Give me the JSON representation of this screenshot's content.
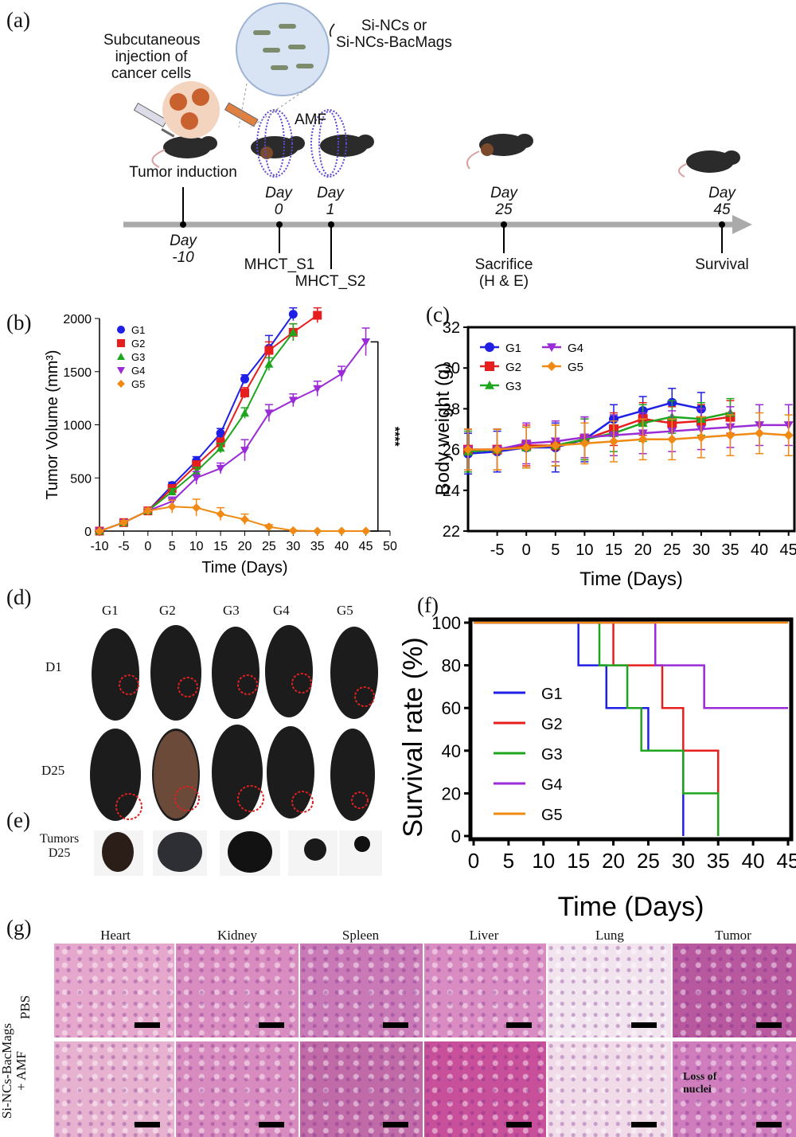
{
  "panels": {
    "a": "(a)",
    "b": "(b)",
    "c": "(c)",
    "d": "(d)",
    "e": "(e)",
    "f": "(f)",
    "g": "(g)"
  },
  "timeline": {
    "injection_label": "Subcutaneous\ninjection of\ncancer cells",
    "particles_label": "Si-NCs or\nSi-NCs-BacMags",
    "amf_label": "AMF",
    "tumor_induction": "Tumor induction",
    "events": [
      {
        "day": "Day\n-10",
        "label": ""
      },
      {
        "day": "Day\n0",
        "label": "MHCT_S1"
      },
      {
        "day": "Day\n1",
        "label": "MHCT_S2"
      },
      {
        "day": "Day\n25",
        "label": "Sacrifice\n(H & E)"
      },
      {
        "day": "Day\n45",
        "label": "Survival"
      }
    ]
  },
  "photos": {
    "groups": [
      "G1",
      "G2",
      "G3",
      "G4",
      "G5"
    ],
    "rows": [
      "D1",
      "D25"
    ],
    "tumors_label": "Tumors\nD25"
  },
  "histology": {
    "columns": [
      "Heart",
      "Kidney",
      "Spleen",
      "Liver",
      "Lung",
      "Tumor"
    ],
    "rows": [
      "PBS",
      "Si-NCs-BacMags\n+ AMF"
    ],
    "annotation": "Loss of\nnuclei",
    "stain_color": "#d77fb6"
  },
  "colors": {
    "G1": "#1f1fe6",
    "G2": "#e61e1e",
    "G3": "#1ea61e",
    "G4": "#9a2bd6",
    "G5": "#f08a14"
  },
  "chart_data": [
    {
      "id": "b",
      "type": "line",
      "title": "",
      "xlabel": "Time (Days)",
      "ylabel": "Tumor Volume (mm³)",
      "xlim": [
        -10,
        50
      ],
      "ylim": [
        0,
        2000
      ],
      "xticks": [
        -10,
        -5,
        0,
        5,
        10,
        15,
        20,
        25,
        30,
        35,
        40,
        45,
        50
      ],
      "yticks": [
        0,
        500,
        1000,
        1500,
        2000
      ],
      "legend": "top-left",
      "significance": "****",
      "series": [
        {
          "name": "G1",
          "x": [
            -10,
            -5,
            0,
            5,
            10,
            15,
            20,
            25,
            30
          ],
          "y": [
            0,
            80,
            190,
            430,
            660,
            920,
            1430,
            1720,
            2040
          ],
          "err": [
            10,
            20,
            25,
            30,
            40,
            45,
            40,
            120,
            60
          ]
        },
        {
          "name": "G2",
          "x": [
            -10,
            -5,
            0,
            5,
            10,
            15,
            20,
            25,
            30,
            35
          ],
          "y": [
            0,
            80,
            190,
            400,
            620,
            830,
            1300,
            1700,
            1870,
            2030
          ],
          "err": [
            10,
            20,
            25,
            30,
            40,
            45,
            50,
            80,
            80,
            70
          ]
        },
        {
          "name": "G3",
          "x": [
            -10,
            -5,
            0,
            5,
            10,
            15,
            20,
            25,
            30
          ],
          "y": [
            0,
            80,
            190,
            370,
            560,
            780,
            1110,
            1570,
            1870
          ],
          "err": [
            10,
            20,
            25,
            30,
            40,
            45,
            50,
            60,
            80
          ]
        },
        {
          "name": "G4",
          "x": [
            -10,
            -5,
            0,
            5,
            10,
            15,
            20,
            25,
            30,
            35,
            40,
            45
          ],
          "y": [
            0,
            80,
            190,
            280,
            500,
            590,
            760,
            1110,
            1230,
            1340,
            1480,
            1780
          ],
          "err": [
            10,
            20,
            25,
            40,
            60,
            50,
            100,
            80,
            60,
            70,
            70,
            130
          ]
        },
        {
          "name": "G5",
          "x": [
            -10,
            -5,
            0,
            5,
            10,
            15,
            20,
            25,
            30,
            35,
            40,
            45
          ],
          "y": [
            0,
            80,
            190,
            230,
            220,
            160,
            110,
            40,
            5,
            0,
            0,
            0
          ],
          "err": [
            10,
            20,
            25,
            60,
            80,
            60,
            50,
            20,
            5,
            0,
            0,
            0
          ]
        }
      ]
    },
    {
      "id": "c",
      "type": "line",
      "title": "",
      "xlabel": "Time (Days)",
      "ylabel": "Body weight (g)",
      "xlim": [
        -10,
        46
      ],
      "ylim": [
        22,
        32
      ],
      "xticks": [
        -5,
        0,
        5,
        10,
        15,
        20,
        25,
        30,
        35,
        40,
        45
      ],
      "yticks": [
        22,
        24,
        26,
        28,
        30,
        32
      ],
      "legend": "top-left",
      "series": [
        {
          "name": "G1",
          "x": [
            -10,
            -5,
            0,
            5,
            10,
            15,
            20,
            25,
            30
          ],
          "y": [
            25.8,
            25.9,
            26.1,
            26.1,
            26.5,
            27.5,
            27.9,
            28.3,
            28.0
          ],
          "err": [
            1.0,
            1.0,
            1.0,
            1.2,
            1.1,
            0.7,
            0.7,
            0.7,
            0.8
          ]
        },
        {
          "name": "G2",
          "x": [
            -10,
            -5,
            0,
            5,
            10,
            15,
            20,
            25,
            30,
            35
          ],
          "y": [
            26.0,
            26.0,
            26.2,
            26.2,
            26.5,
            27.0,
            27.5,
            27.3,
            27.4,
            27.6
          ],
          "err": [
            1.0,
            1.0,
            1.0,
            1.0,
            1.0,
            0.8,
            0.8,
            0.8,
            0.8,
            0.8
          ]
        },
        {
          "name": "G3",
          "x": [
            -10,
            -5,
            0,
            5,
            10,
            15,
            20,
            25,
            30,
            35
          ],
          "y": [
            25.9,
            26.0,
            26.1,
            26.2,
            26.5,
            26.8,
            27.3,
            27.6,
            27.5,
            27.8
          ],
          "err": [
            1.0,
            1.0,
            1.0,
            1.0,
            1.0,
            0.9,
            0.9,
            0.8,
            0.8,
            0.7
          ]
        },
        {
          "name": "G4",
          "x": [
            -10,
            -5,
            0,
            5,
            10,
            15,
            20,
            25,
            30,
            35,
            40,
            45
          ],
          "y": [
            26.0,
            26.0,
            26.3,
            26.4,
            26.6,
            26.7,
            26.8,
            26.9,
            27.0,
            27.1,
            27.2,
            27.2
          ],
          "err": [
            1.0,
            1.0,
            1.0,
            1.0,
            1.0,
            1.0,
            1.0,
            1.0,
            1.0,
            1.0,
            1.0,
            1.0
          ]
        },
        {
          "name": "G5",
          "x": [
            -10,
            -5,
            0,
            5,
            10,
            15,
            20,
            25,
            30,
            35,
            40,
            45
          ],
          "y": [
            26.0,
            26.0,
            26.1,
            26.2,
            26.3,
            26.4,
            26.5,
            26.5,
            26.6,
            26.7,
            26.8,
            26.7
          ],
          "err": [
            1.0,
            1.0,
            1.0,
            1.0,
            1.0,
            1.0,
            1.0,
            1.0,
            1.0,
            1.0,
            1.0,
            1.0
          ]
        }
      ]
    },
    {
      "id": "f",
      "type": "line",
      "title": "",
      "xlabel": "Time (Days)",
      "ylabel": "Survival rate (%)",
      "xlim": [
        0,
        45
      ],
      "ylim": [
        0,
        100
      ],
      "xticks": [
        0,
        5,
        10,
        15,
        20,
        25,
        30,
        35,
        40,
        45
      ],
      "yticks": [
        0,
        20,
        40,
        60,
        80,
        100
      ],
      "legend": "left",
      "series": [
        {
          "name": "G1",
          "x": [
            0,
            15,
            19,
            25,
            30
          ],
          "y": [
            100,
            80,
            60,
            40,
            20
          ]
        },
        {
          "name": "G2",
          "x": [
            0,
            20,
            27,
            30,
            35
          ],
          "y": [
            100,
            80,
            60,
            40,
            0
          ]
        },
        {
          "name": "G3",
          "x": [
            0,
            18,
            22,
            24,
            30,
            35
          ],
          "y": [
            100,
            80,
            60,
            40,
            20,
            0
          ]
        },
        {
          "name": "G4",
          "x": [
            0,
            26,
            33,
            45
          ],
          "y": [
            100,
            80,
            60,
            60
          ]
        },
        {
          "name": "G5",
          "x": [
            0,
            45
          ],
          "y": [
            100,
            100
          ]
        }
      ]
    }
  ]
}
